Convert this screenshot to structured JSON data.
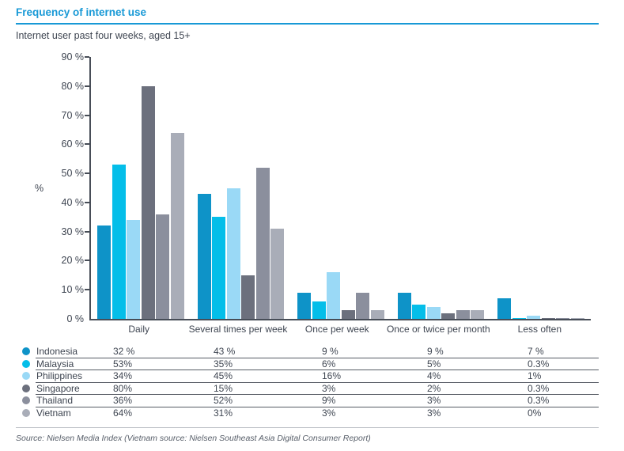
{
  "title": "Frequency of internet use",
  "subtitle": "Internet user past four weeks, aged 15+",
  "source": "Source: Nielsen Media Index (Vietnam source: Nielsen Southeast Asia Digital Consumer Report)",
  "colors": {
    "accent_blue": "#1899d6",
    "axis": "#474d57",
    "text": "#3e4551",
    "muted": "#565d68"
  },
  "chart_data": {
    "type": "bar",
    "title": "Frequency of internet use",
    "subtitle": "Internet user past four weeks, aged 15+",
    "categories": [
      "Daily",
      "Several times per week",
      "Once per week",
      "Once or twice per month",
      "Less often"
    ],
    "series": [
      {
        "name": "Indonesia",
        "color": "#0e93c8",
        "values": [
          32,
          43,
          9,
          9,
          7
        ],
        "labels": [
          "32 %",
          "43 %",
          "9 %",
          "9 %",
          "7 %"
        ]
      },
      {
        "name": "Malaysia",
        "color": "#04bee9",
        "values": [
          53,
          35,
          6,
          5,
          0.3
        ],
        "labels": [
          "53%",
          "35%",
          "6%",
          "5%",
          "0.3%"
        ]
      },
      {
        "name": "Philippines",
        "color": "#9ad9f6",
        "values": [
          34,
          45,
          16,
          4,
          1
        ],
        "labels": [
          "34%",
          "45%",
          "16%",
          "4%",
          "1%"
        ]
      },
      {
        "name": "Singapore",
        "color": "#6c707d",
        "values": [
          80,
          15,
          3,
          2,
          0.3
        ],
        "labels": [
          "80%",
          "15%",
          "3%",
          "2%",
          "0.3%"
        ]
      },
      {
        "name": "Thailand",
        "color": "#8b8f9d",
        "values": [
          36,
          52,
          9,
          3,
          0.3
        ],
        "labels": [
          "36%",
          "52%",
          "9%",
          "3%",
          "0.3%"
        ]
      },
      {
        "name": "Vietnam",
        "color": "#a9adb8",
        "values": [
          64,
          31,
          3,
          3,
          0
        ],
        "labels": [
          "64%",
          "31%",
          "3%",
          "3%",
          "0%"
        ]
      }
    ],
    "xlabel": "",
    "ylabel": "%",
    "ylim": [
      0,
      90
    ],
    "ytick_step": 10,
    "ytick_suffix": " %",
    "grid": false,
    "legend_position": "bottom-table"
  }
}
